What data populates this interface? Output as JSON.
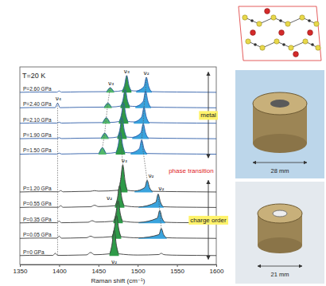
{
  "chart_data": {
    "type": "line",
    "title": "T=20 K",
    "x_label": "Raman shift (cm⁻¹)",
    "xlim": [
      1350,
      1600
    ],
    "xticks": [
      1350,
      1400,
      1450,
      1500,
      1550,
      1600
    ],
    "ylim": [
      0,
      11.5
    ],
    "tick_labels": "x",
    "series": [
      {
        "name": "P=2.60 GPa",
        "color": "#2f5ea8",
        "baseline": 10.0,
        "x": [
          1350,
          1375,
          1397,
          1400,
          1403,
          1425,
          1460,
          1465,
          1470,
          1480,
          1483,
          1486,
          1489,
          1492,
          1498,
          1508,
          1511,
          1514,
          1518,
          1550,
          1575,
          1600
        ],
        "values": [
          10.02,
          10.04,
          10.03,
          10.1,
          10.03,
          10.05,
          10.06,
          10.3,
          10.07,
          10.12,
          10.4,
          11.0,
          10.4,
          10.12,
          10.1,
          10.36,
          10.9,
          10.36,
          10.06,
          10.04,
          10.03,
          10.02
        ],
        "fills": [
          {
            "color": "#52b86a",
            "range": [
              1460,
              1470
            ]
          },
          {
            "color": "#2e9a48",
            "range": [
              1480,
              1492
            ]
          },
          {
            "color": "#39a3dd",
            "range": [
              1498,
              1518
            ]
          }
        ]
      },
      {
        "name": "P=2.40 GPa",
        "color": "#2f5ea8",
        "baseline": 9.1,
        "x": [
          1350,
          1375,
          1395,
          1398,
          1401,
          1425,
          1457,
          1462,
          1467,
          1478,
          1481,
          1484,
          1487,
          1490,
          1497,
          1507,
          1510,
          1513,
          1517,
          1550,
          1575,
          1600
        ],
        "values": [
          9.12,
          9.14,
          9.13,
          9.4,
          9.13,
          9.15,
          9.16,
          9.4,
          9.17,
          9.22,
          9.54,
          10.2,
          9.54,
          9.22,
          9.2,
          9.5,
          10.1,
          9.5,
          9.16,
          9.14,
          9.13,
          9.12
        ],
        "fills": [
          {
            "color": "#52b86a",
            "range": [
              1457,
              1467
            ]
          },
          {
            "color": "#2e9a48",
            "range": [
              1478,
              1490
            ]
          },
          {
            "color": "#39a3dd",
            "range": [
              1497,
              1517
            ]
          }
        ]
      },
      {
        "name": "P=2.10 GPa",
        "color": "#2f5ea8",
        "baseline": 8.2,
        "x": [
          1350,
          1375,
          1397,
          1400,
          1403,
          1425,
          1455,
          1460,
          1465,
          1476,
          1479,
          1482,
          1485,
          1488,
          1495,
          1505,
          1508,
          1511,
          1515,
          1550,
          1575,
          1600
        ],
        "values": [
          8.22,
          8.24,
          8.23,
          8.28,
          8.23,
          8.25,
          8.26,
          8.55,
          8.27,
          8.32,
          8.68,
          9.4,
          8.68,
          8.32,
          8.3,
          8.58,
          9.15,
          8.58,
          8.26,
          8.24,
          8.23,
          8.22
        ],
        "fills": [
          {
            "color": "#52b86a",
            "range": [
              1455,
              1465
            ]
          },
          {
            "color": "#2e9a48",
            "range": [
              1476,
              1488
            ]
          },
          {
            "color": "#39a3dd",
            "range": [
              1495,
              1515
            ]
          }
        ]
      },
      {
        "name": "P=1.90 GPa",
        "color": "#2f5ea8",
        "baseline": 7.3,
        "x": [
          1350,
          1375,
          1397,
          1400,
          1403,
          1425,
          1453,
          1458,
          1463,
          1474,
          1477,
          1480,
          1483,
          1486,
          1493,
          1504,
          1507,
          1510,
          1514,
          1550,
          1575,
          1600
        ],
        "values": [
          7.32,
          7.34,
          7.33,
          7.38,
          7.33,
          7.35,
          7.36,
          7.65,
          7.37,
          7.42,
          7.8,
          8.55,
          7.8,
          7.42,
          7.4,
          7.66,
          8.2,
          7.66,
          7.36,
          7.34,
          7.33,
          7.32
        ],
        "fills": [
          {
            "color": "#52b86a",
            "range": [
              1453,
              1463
            ]
          },
          {
            "color": "#2e9a48",
            "range": [
              1474,
              1486
            ]
          },
          {
            "color": "#39a3dd",
            "range": [
              1493,
              1514
            ]
          }
        ]
      },
      {
        "name": "P=1.50 GPa",
        "color": "#2f5ea8",
        "baseline": 6.4,
        "x": [
          1350,
          1375,
          1397,
          1400,
          1403,
          1425,
          1450,
          1455,
          1460,
          1472,
          1475,
          1478,
          1481,
          1484,
          1491,
          1502,
          1505,
          1508,
          1512,
          1550,
          1575,
          1600
        ],
        "values": [
          6.42,
          6.44,
          6.43,
          6.48,
          6.43,
          6.45,
          6.46,
          6.8,
          6.47,
          6.52,
          6.92,
          7.7,
          6.92,
          6.52,
          6.5,
          6.74,
          7.25,
          6.74,
          6.46,
          6.44,
          6.43,
          6.42
        ],
        "fills": [
          {
            "color": "#52b86a",
            "range": [
              1450,
              1460
            ]
          },
          {
            "color": "#2e9a48",
            "range": [
              1472,
              1484
            ]
          },
          {
            "color": "#39a3dd",
            "range": [
              1491,
              1512
            ]
          }
        ]
      },
      {
        "name": "P=1.20 GPa",
        "color": "#3a3a3a",
        "baseline": 4.2,
        "x": [
          1350,
          1375,
          1399,
          1402,
          1405,
          1425,
          1440,
          1445,
          1450,
          1475,
          1478,
          1481,
          1484,
          1487,
          1496,
          1509,
          1512,
          1515,
          1519,
          1550,
          1575,
          1600
        ],
        "values": [
          4.22,
          4.24,
          4.23,
          4.3,
          4.23,
          4.25,
          4.26,
          4.3,
          4.27,
          4.32,
          4.84,
          5.8,
          4.84,
          4.32,
          4.28,
          4.48,
          4.9,
          4.48,
          4.26,
          4.24,
          4.23,
          4.22
        ],
        "fills": [
          {
            "color": "#2e9a48",
            "range": [
              1475,
              1487
            ]
          },
          {
            "color": "#39a3dd",
            "range": [
              1496,
              1519
            ]
          }
        ]
      },
      {
        "name": "P=0.55 GPa",
        "color": "#3a3a3a",
        "baseline": 3.3,
        "x": [
          1350,
          1375,
          1399,
          1402,
          1405,
          1425,
          1440,
          1445,
          1450,
          1471,
          1474,
          1477,
          1480,
          1483,
          1501,
          1523,
          1526,
          1529,
          1533,
          1550,
          1575,
          1600
        ],
        "values": [
          3.32,
          3.34,
          3.33,
          3.42,
          3.33,
          3.35,
          3.36,
          3.45,
          3.37,
          3.42,
          3.82,
          4.6,
          3.82,
          3.42,
          3.35,
          3.62,
          4.1,
          3.62,
          3.36,
          3.34,
          3.33,
          3.32
        ],
        "fills": [
          {
            "color": "#2e9a48",
            "range": [
              1471,
              1483
            ]
          },
          {
            "color": "#39a3dd",
            "range": [
              1501,
              1533
            ]
          }
        ]
      },
      {
        "name": "P=0.35 GPa",
        "color": "#3a3a3a",
        "baseline": 2.4,
        "x": [
          1350,
          1375,
          1397,
          1400,
          1403,
          1425,
          1437,
          1442,
          1447,
          1469,
          1472,
          1475,
          1478,
          1481,
          1501,
          1525,
          1528,
          1531,
          1535,
          1550,
          1575,
          1600
        ],
        "values": [
          2.42,
          2.44,
          2.43,
          2.52,
          2.43,
          2.45,
          2.46,
          2.55,
          2.47,
          2.52,
          2.92,
          3.7,
          2.92,
          2.52,
          2.45,
          2.7,
          3.15,
          2.7,
          2.46,
          2.44,
          2.43,
          2.42
        ],
        "fills": [
          {
            "color": "#2e9a48",
            "range": [
              1469,
              1481
            ]
          },
          {
            "color": "#39a3dd",
            "range": [
              1501,
              1535
            ]
          }
        ]
      },
      {
        "name": "P=0.05 GPa",
        "color": "#3a3a3a",
        "baseline": 1.5,
        "x": [
          1350,
          1375,
          1397,
          1400,
          1403,
          1425,
          1435,
          1440,
          1445,
          1467,
          1470,
          1473,
          1476,
          1479,
          1501,
          1527,
          1530,
          1533,
          1537,
          1550,
          1575,
          1600
        ],
        "values": [
          1.52,
          1.54,
          1.53,
          1.65,
          1.53,
          1.55,
          1.56,
          1.65,
          1.57,
          1.62,
          2.04,
          2.85,
          2.04,
          1.62,
          1.55,
          1.74,
          2.1,
          1.74,
          1.56,
          1.54,
          1.53,
          1.52
        ],
        "fills": [
          {
            "color": "#2e9a48",
            "range": [
              1467,
              1479
            ]
          },
          {
            "color": "#39a3dd",
            "range": [
              1501,
              1537
            ]
          }
        ]
      },
      {
        "name": "P=0 GPa",
        "color": "#3a3a3a",
        "baseline": 0.5,
        "x": [
          1350,
          1375,
          1392,
          1395,
          1398,
          1425,
          1435,
          1440,
          1445,
          1464,
          1467,
          1470,
          1473,
          1476,
          1500,
          1527,
          1530,
          1533,
          1537,
          1550,
          1575,
          1600
        ],
        "values": [
          0.52,
          0.54,
          0.53,
          0.65,
          0.53,
          0.55,
          0.56,
          0.7,
          0.57,
          0.62,
          1.1,
          2.0,
          1.1,
          0.62,
          0.55,
          0.58,
          0.65,
          0.58,
          0.56,
          0.54,
          0.53,
          0.52
        ],
        "fills": [
          {
            "color": "#2e9a48",
            "range": [
              1464,
              1476
            ]
          }
        ]
      }
    ],
    "guide_lines": [
      {
        "line_style": "dotted",
        "points": [
          [
            1465,
            10.3
          ],
          [
            1462,
            9.4
          ],
          [
            1460,
            8.55
          ],
          [
            1458,
            7.65
          ],
          [
            1455,
            6.8
          ]
        ]
      },
      {
        "line_style": "dotted",
        "points": [
          [
            1486,
            11.0
          ],
          [
            1484,
            10.2
          ],
          [
            1482,
            9.4
          ],
          [
            1480,
            8.55
          ],
          [
            1478,
            7.7
          ],
          [
            1481,
            5.8
          ],
          [
            1477,
            4.6
          ],
          [
            1475,
            3.7
          ],
          [
            1473,
            2.85
          ],
          [
            1470,
            2.0
          ]
        ]
      },
      {
        "line_style": "dotted",
        "points": [
          [
            1511,
            10.9
          ],
          [
            1510,
            10.1
          ],
          [
            1508,
            9.15
          ],
          [
            1507,
            8.2
          ],
          [
            1505,
            7.25
          ],
          [
            1512,
            4.9
          ]
        ]
      },
      {
        "line_style": "dotted",
        "points": [
          [
            1526,
            4.1
          ],
          [
            1528,
            3.15
          ],
          [
            1530,
            2.1
          ]
        ]
      },
      {
        "line_style": "dotted",
        "points": [
          [
            1398,
            9.4
          ],
          [
            1398,
            0.5
          ]
        ]
      }
    ],
    "annotations": [
      {
        "text": "ν₃",
        "x": 1486,
        "y": 11.15
      },
      {
        "text": "ν₂",
        "x": 1511,
        "y": 11.05
      },
      {
        "text": "ν₃",
        "x": 1466,
        "y": 10.45
      },
      {
        "text": "ν₄",
        "x": 1399,
        "y": 9.55
      },
      {
        "text": "ν₃",
        "x": 1483,
        "y": 5.95
      },
      {
        "text": "ν₂",
        "x": 1517,
        "y": 5.05
      },
      {
        "text": "ν₂",
        "x": 1530,
        "y": 4.3
      },
      {
        "text": "ν₂",
        "x": 1464,
        "y": 3.75
      },
      {
        "text": "ν₂",
        "x": 1470,
        "y": 0.05
      },
      {
        "text": "phase transition",
        "x": 1568,
        "y": 5.35,
        "color": "#e0201b"
      }
    ],
    "regions": [
      {
        "text": "metal",
        "ylim": [
          6.2,
          11.2
        ],
        "color": "#fff36b"
      },
      {
        "text": "charge order",
        "ylim": [
          0.3,
          4.9
        ],
        "color": "#fff36b"
      }
    ]
  },
  "photos": [
    {
      "caption": "28 mm"
    },
    {
      "caption": "21 mm"
    }
  ]
}
